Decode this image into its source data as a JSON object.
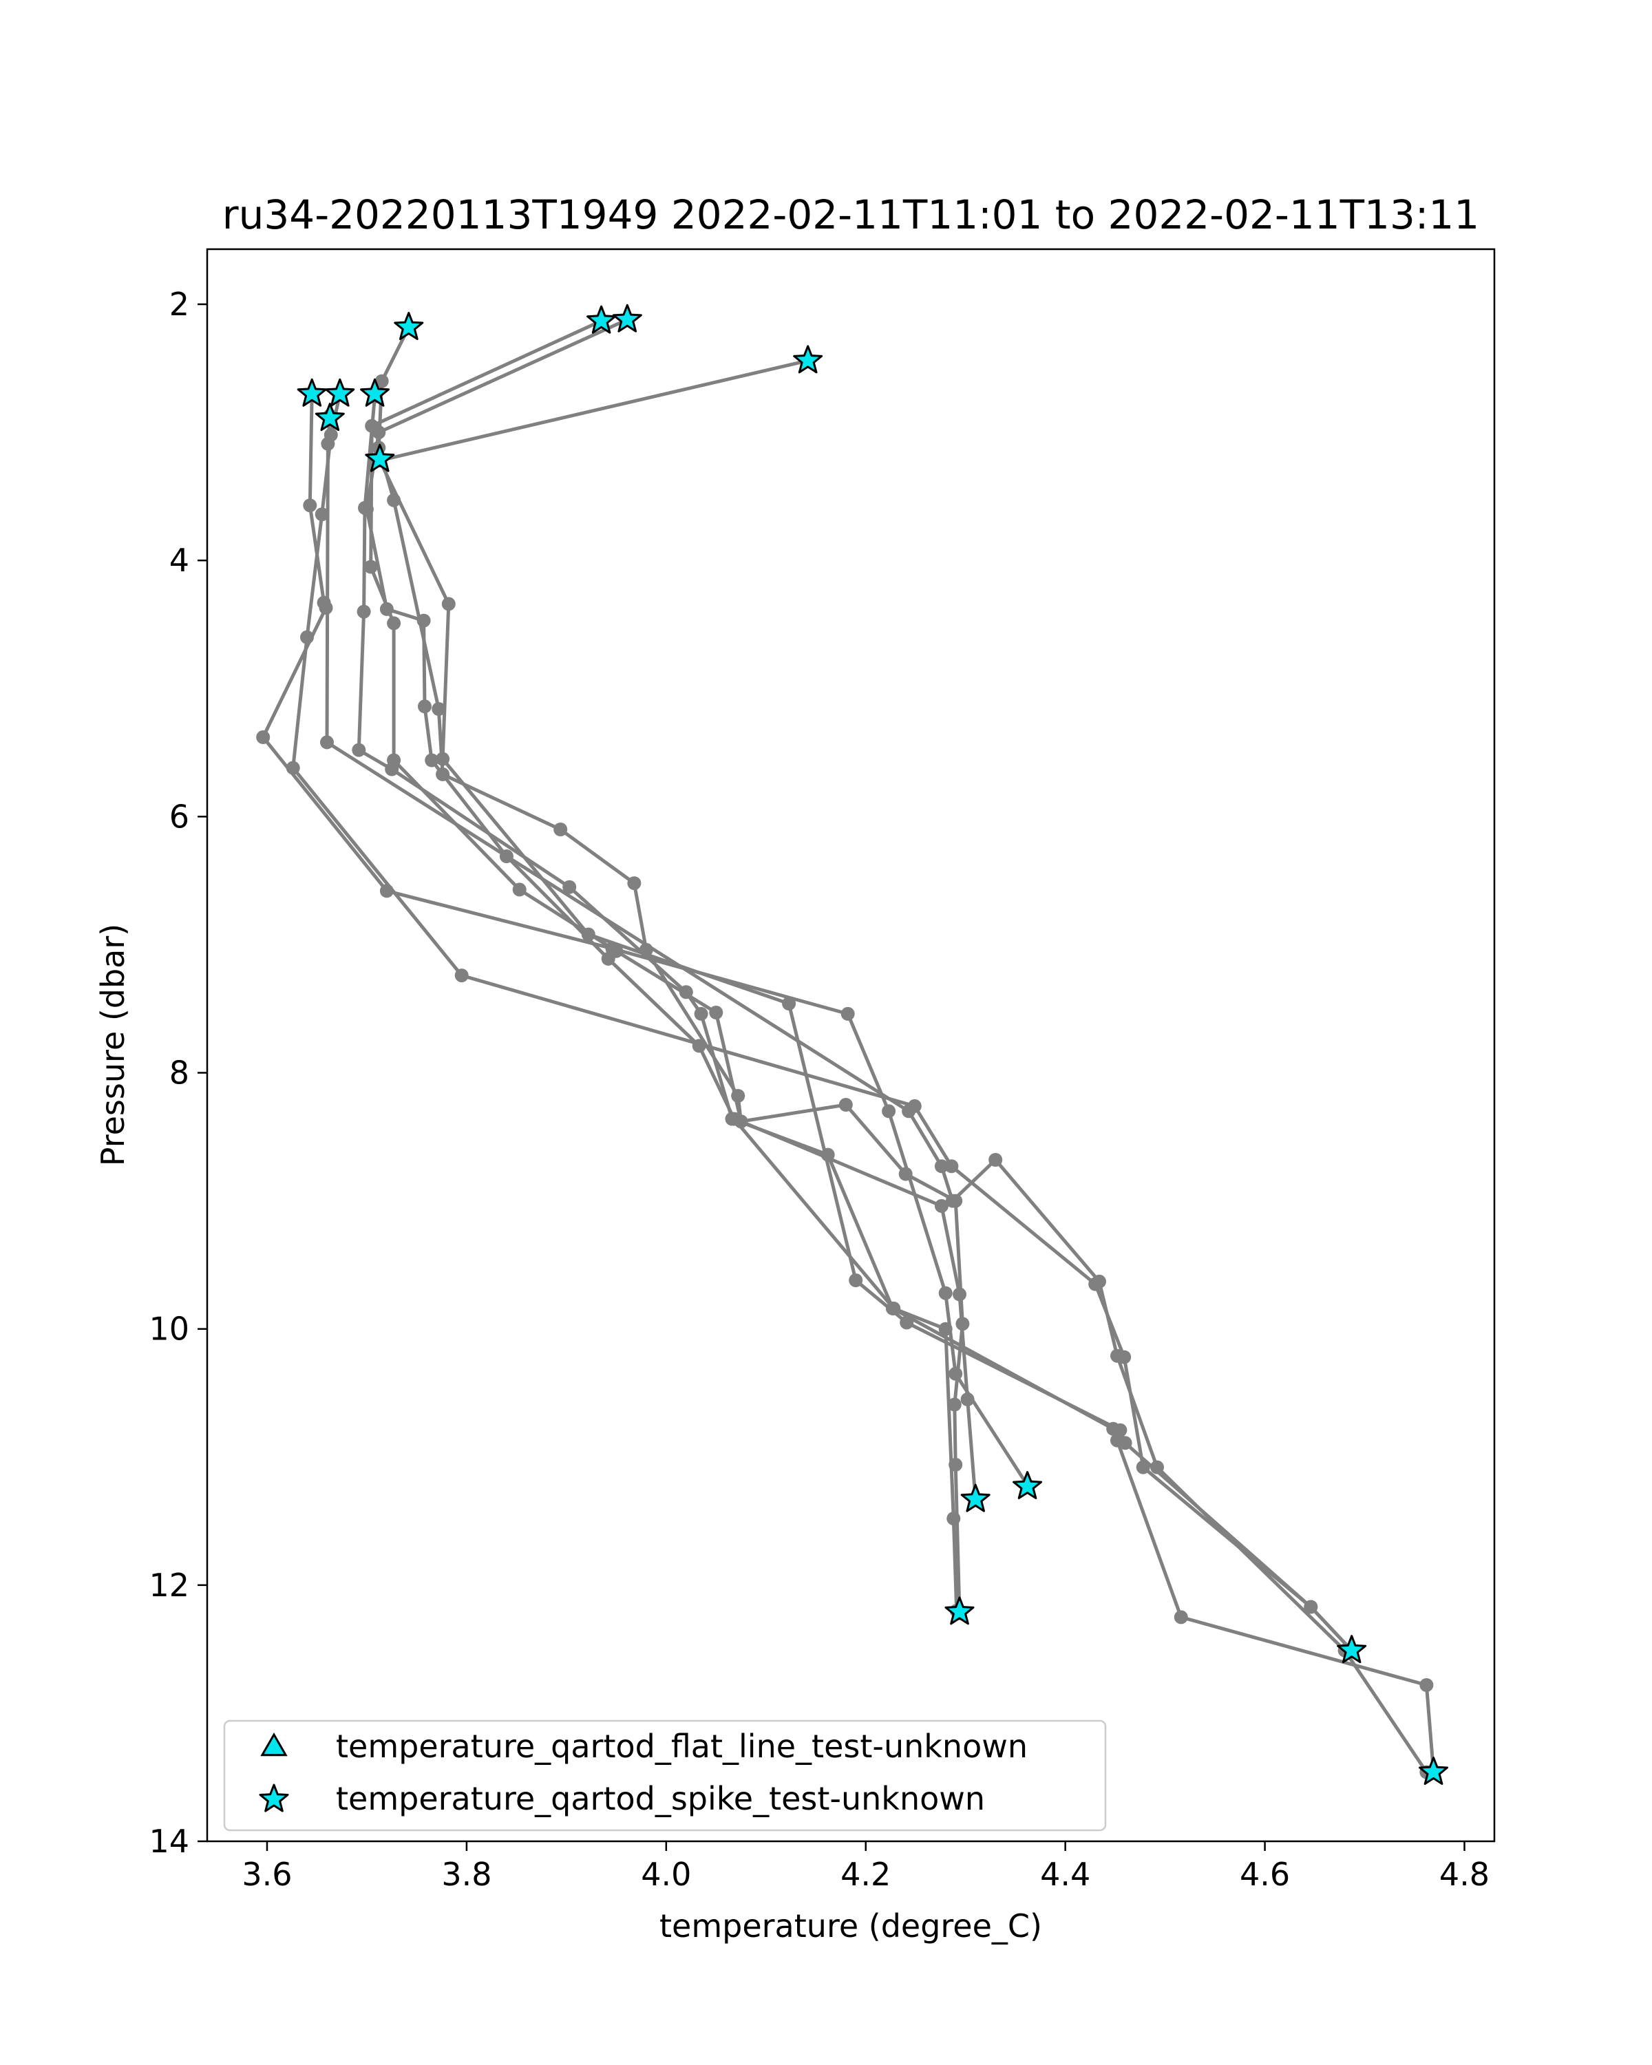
{
  "chart_data": {
    "type": "scatter",
    "title": "ru34-20220113T1949 2022-02-11T11:01 to 2022-02-11T13:11",
    "xlabel": "temperature (degree_C)",
    "ylabel": "Pressure (dbar)",
    "xlim": [
      3.54,
      4.83
    ],
    "ylim": [
      14.0,
      1.57
    ],
    "y_inverted": true,
    "xticks": [
      3.6,
      3.8,
      4.0,
      4.2,
      4.4,
      4.6,
      4.8
    ],
    "xtick_labels": [
      "3.6",
      "3.8",
      "4.0",
      "4.2",
      "4.4",
      "4.6",
      "4.8"
    ],
    "yticks": [
      2,
      4,
      6,
      8,
      10,
      12,
      14
    ],
    "ytick_labels": [
      "2",
      "4",
      "6",
      "8",
      "10",
      "12",
      "14"
    ],
    "grid": false,
    "legend_position": "lower-left",
    "colors": {
      "profile_line": "#808080",
      "flag_marker": "#00e5ee",
      "marker_edge": "#000000"
    },
    "profiles": [
      {
        "points": [
          [
            3.742,
            2.18
          ],
          [
            3.715,
            2.6
          ],
          [
            3.712,
            3.12
          ],
          [
            3.727,
            3.53
          ],
          [
            3.772,
            5.16
          ],
          [
            3.776,
            5.67
          ],
          [
            3.894,
            6.1
          ],
          [
            3.968,
            6.52
          ],
          [
            3.98,
            7.04
          ],
          [
            4.072,
            8.18
          ],
          [
            4.075,
            8.38
          ],
          [
            4.276,
            9.04
          ],
          [
            4.294,
            9.73
          ],
          [
            4.302,
            10.55
          ],
          [
            4.31,
            11.33
          ]
        ]
      },
      {
        "points": [
          [
            3.935,
            2.13
          ],
          [
            3.705,
            2.95
          ],
          [
            3.704,
            4.05
          ],
          [
            3.727,
            4.49
          ],
          [
            3.727,
            5.56
          ],
          [
            3.853,
            6.57
          ],
          [
            3.95,
            7.05
          ],
          [
            4.05,
            7.53
          ],
          [
            4.075,
            8.38
          ],
          [
            4.18,
            8.25
          ],
          [
            4.24,
            8.79
          ],
          [
            4.29,
            9.0
          ],
          [
            4.297,
            9.96
          ],
          [
            4.289,
            10.59
          ],
          [
            4.29,
            11.06
          ],
          [
            4.294,
            12.22
          ]
        ]
      },
      {
        "points": [
          [
            3.961,
            2.12
          ],
          [
            3.712,
            3.0
          ],
          [
            3.7,
            3.6
          ],
          [
            3.72,
            4.38
          ],
          [
            3.757,
            4.47
          ],
          [
            3.758,
            5.14
          ],
          [
            3.765,
            5.56
          ],
          [
            3.84,
            6.31
          ],
          [
            3.942,
            7.11
          ],
          [
            4.033,
            7.79
          ],
          [
            4.068,
            8.36
          ],
          [
            4.228,
            9.84
          ],
          [
            4.28,
            10.0
          ],
          [
            4.288,
            11.48
          ],
          [
            4.291,
            12.2
          ]
        ]
      },
      {
        "points": [
          [
            4.142,
            2.44
          ],
          [
            3.713,
            3.22
          ],
          [
            3.782,
            4.34
          ],
          [
            3.776,
            5.55
          ],
          [
            3.922,
            6.92
          ],
          [
            4.123,
            7.46
          ],
          [
            4.19,
            9.62
          ],
          [
            4.241,
            9.95
          ],
          [
            4.455,
            10.79
          ],
          [
            4.46,
            10.89
          ],
          [
            4.646,
            12.17
          ],
          [
            4.687,
            12.51
          ]
        ]
      },
      {
        "points": [
          [
            3.645,
            2.7
          ],
          [
            3.643,
            3.57
          ],
          [
            3.657,
            4.33
          ],
          [
            3.659,
            4.37
          ],
          [
            3.596,
            5.38
          ],
          [
            3.72,
            6.58
          ],
          [
            3.946,
            7.03
          ],
          [
            4.182,
            7.54
          ],
          [
            4.223,
            8.3
          ],
          [
            4.28,
            9.72
          ],
          [
            4.29,
            10.35
          ],
          [
            4.362,
            11.22
          ]
        ]
      },
      {
        "points": [
          [
            3.673,
            2.7
          ],
          [
            3.664,
            3.02
          ],
          [
            3.655,
            3.64
          ],
          [
            3.64,
            4.6
          ],
          [
            3.626,
            5.62
          ],
          [
            3.795,
            7.24
          ],
          [
            4.249,
            8.26
          ],
          [
            4.286,
            8.73
          ],
          [
            4.43,
            9.65
          ],
          [
            4.459,
            10.22
          ],
          [
            4.478,
            11.08
          ],
          [
            4.646,
            12.17
          ],
          [
            4.687,
            12.51
          ]
        ]
      },
      {
        "points": [
          [
            3.663,
            2.87
          ],
          [
            3.661,
            3.09
          ],
          [
            3.66,
            5.42
          ],
          [
            4.243,
            8.3
          ],
          [
            4.276,
            8.73
          ],
          [
            4.287,
            9.0
          ],
          [
            4.33,
            8.68
          ],
          [
            4.434,
            9.63
          ],
          [
            4.452,
            10.21
          ],
          [
            4.492,
            11.08
          ],
          [
            4.68,
            12.51
          ],
          [
            4.762,
            13.46
          ]
        ]
      },
      {
        "points": [
          [
            3.708,
            2.72
          ],
          [
            3.698,
            3.59
          ],
          [
            3.697,
            4.4
          ],
          [
            3.692,
            5.48
          ],
          [
            3.725,
            5.63
          ],
          [
            3.903,
            6.55
          ],
          [
            4.02,
            7.37
          ],
          [
            4.035,
            7.54
          ],
          [
            4.066,
            8.36
          ],
          [
            4.162,
            8.64
          ],
          [
            4.227,
            9.84
          ],
          [
            4.448,
            10.78
          ],
          [
            4.452,
            10.87
          ],
          [
            4.516,
            12.25
          ],
          [
            4.762,
            12.78
          ],
          [
            4.769,
            13.46
          ]
        ]
      }
    ],
    "flat_line_test_points": [],
    "spike_test_points": [
      [
        3.742,
        2.18
      ],
      [
        3.935,
        2.13
      ],
      [
        3.961,
        2.12
      ],
      [
        4.142,
        2.44
      ],
      [
        3.645,
        2.7
      ],
      [
        3.673,
        2.7
      ],
      [
        3.708,
        2.7
      ],
      [
        3.663,
        2.89
      ],
      [
        3.713,
        3.21
      ],
      [
        4.362,
        11.23
      ],
      [
        4.31,
        11.33
      ],
      [
        4.294,
        12.21
      ],
      [
        4.687,
        12.51
      ],
      [
        4.769,
        13.46
      ]
    ],
    "legend": [
      {
        "marker": "triangle",
        "label": "temperature_qartod_flat_line_test-unknown"
      },
      {
        "marker": "star",
        "label": "temperature_qartod_spike_test-unknown"
      }
    ]
  }
}
